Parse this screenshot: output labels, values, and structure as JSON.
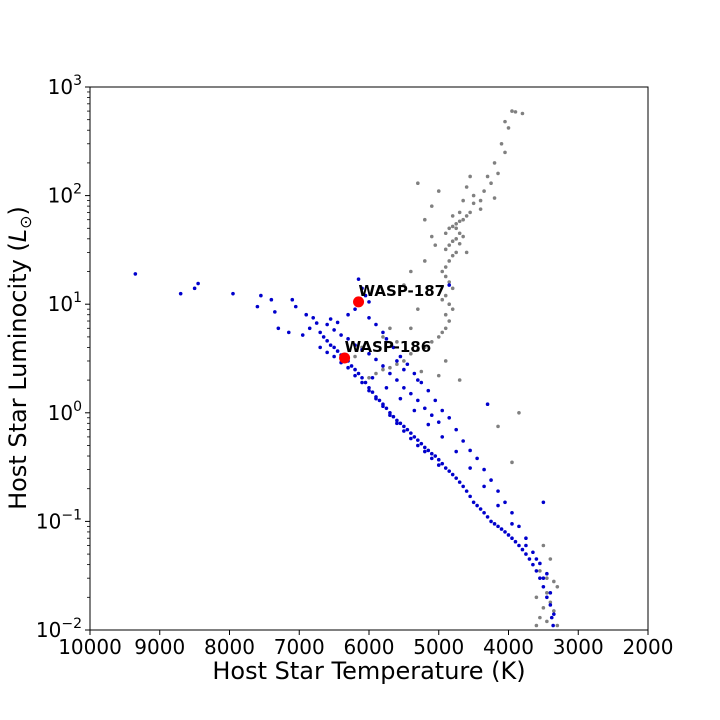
{
  "chart_data": {
    "type": "scatter",
    "title": "",
    "xlabel": "Host Star Temperature (K)",
    "ylabel_text": "Host Star Luminocity (",
    "ylabel_symbol": "L",
    "ylabel_sub": "⊙",
    "ylabel_close": ")",
    "xlim": [
      10000,
      2000
    ],
    "x_inverted": true,
    "ylim": [
      0.01,
      1000
    ],
    "y_scale": "log",
    "grid": false,
    "x_ticks": [
      10000,
      9000,
      8000,
      7000,
      6000,
      5000,
      4000,
      3000,
      2000
    ],
    "x_tick_labels": [
      "10000",
      "9000",
      "8000",
      "7000",
      "6000",
      "5000",
      "4000",
      "3000",
      "2000"
    ],
    "y_ticks": [
      0.01,
      0.1,
      1,
      10,
      100,
      1000
    ],
    "y_tick_labels": [
      {
        "base": "10",
        "exp": "−2"
      },
      {
        "base": "10",
        "exp": "−1"
      },
      {
        "base": "10",
        "exp": "0"
      },
      {
        "base": "10",
        "exp": "1"
      },
      {
        "base": "10",
        "exp": "2"
      },
      {
        "base": "10",
        "exp": "3"
      }
    ],
    "series": [
      {
        "color": "#808080",
        "points": [
          [
            3950,
            600
          ],
          [
            3900,
            590
          ],
          [
            3800,
            570
          ],
          [
            4050,
            480
          ],
          [
            4000,
            420
          ],
          [
            4100,
            300
          ],
          [
            4050,
            250
          ],
          [
            4200,
            200
          ],
          [
            4150,
            160
          ],
          [
            4300,
            150
          ],
          [
            4250,
            130
          ],
          [
            4350,
            110
          ],
          [
            4200,
            95
          ],
          [
            4400,
            90
          ],
          [
            4500,
            85
          ],
          [
            4550,
            70
          ],
          [
            4600,
            65
          ],
          [
            4650,
            60
          ],
          [
            4700,
            58
          ],
          [
            4750,
            55
          ],
          [
            4800,
            52
          ],
          [
            4850,
            50
          ],
          [
            4700,
            45
          ],
          [
            4750,
            40
          ],
          [
            4800,
            38
          ],
          [
            4850,
            35
          ],
          [
            4900,
            32
          ],
          [
            4750,
            30
          ],
          [
            4800,
            28
          ],
          [
            4850,
            25
          ],
          [
            4900,
            22
          ],
          [
            4950,
            20
          ],
          [
            4900,
            18
          ],
          [
            4850,
            16
          ],
          [
            4800,
            14
          ],
          [
            4900,
            12
          ],
          [
            4950,
            11
          ],
          [
            4850,
            10
          ],
          [
            4800,
            9
          ],
          [
            4900,
            8
          ],
          [
            4850,
            7
          ],
          [
            4900,
            6
          ],
          [
            4950,
            5.5
          ],
          [
            5000,
            5
          ],
          [
            5100,
            4.5
          ],
          [
            5200,
            4
          ],
          [
            5300,
            3.8
          ],
          [
            5400,
            3.5
          ],
          [
            5500,
            3
          ],
          [
            5600,
            2.8
          ],
          [
            5700,
            2.6
          ],
          [
            5800,
            2.5
          ],
          [
            5900,
            2.3
          ],
          [
            6000,
            2.1
          ],
          [
            4600,
            120
          ],
          [
            4500,
            100
          ],
          [
            4400,
            75
          ],
          [
            4650,
            90
          ],
          [
            4700,
            70
          ],
          [
            4800,
            65
          ],
          [
            4750,
            50
          ],
          [
            4900,
            45
          ],
          [
            4650,
            42
          ],
          [
            4700,
            36
          ],
          [
            4600,
            30
          ],
          [
            4550,
            150
          ],
          [
            5300,
            130
          ],
          [
            5000,
            110
          ],
          [
            5100,
            80
          ],
          [
            5200,
            60
          ],
          [
            5100,
            42
          ],
          [
            5050,
            35
          ],
          [
            5400,
            20
          ],
          [
            5500,
            15
          ],
          [
            5200,
            25
          ],
          [
            5300,
            9
          ],
          [
            5700,
            6
          ],
          [
            5800,
            5
          ],
          [
            6100,
            4
          ],
          [
            6200,
            3.3
          ],
          [
            5400,
            6
          ],
          [
            5600,
            4.5
          ],
          [
            5250,
            2.4
          ],
          [
            5000,
            2.2
          ],
          [
            4900,
            3
          ],
          [
            4700,
            2
          ],
          [
            3850,
            1
          ],
          [
            4150,
            0.75
          ],
          [
            3950,
            0.35
          ],
          [
            3500,
            0.06
          ],
          [
            3400,
            0.045
          ],
          [
            3450,
            0.03
          ],
          [
            3550,
            0.035
          ],
          [
            3350,
            0.028
          ],
          [
            3300,
            0.025
          ],
          [
            3450,
            0.022
          ],
          [
            3600,
            0.02
          ],
          [
            3400,
            0.018
          ],
          [
            3500,
            0.016
          ],
          [
            3350,
            0.015
          ],
          [
            3550,
            0.013
          ],
          [
            3450,
            0.012
          ],
          [
            3300,
            0.011
          ],
          [
            3600,
            0.011
          ]
        ]
      },
      {
        "color": "#0000cc",
        "points": [
          [
            9350,
            19
          ],
          [
            8700,
            12.5
          ],
          [
            8450,
            15.5
          ],
          [
            8500,
            14
          ],
          [
            7950,
            12.5
          ],
          [
            7600,
            9.5
          ],
          [
            7550,
            12
          ],
          [
            7400,
            11
          ],
          [
            7350,
            8.5
          ],
          [
            7100,
            11
          ],
          [
            7050,
            9.5
          ],
          [
            6900,
            8
          ],
          [
            6800,
            7.5
          ],
          [
            6850,
            6
          ],
          [
            6700,
            5.5
          ],
          [
            6650,
            5
          ],
          [
            6600,
            4.6
          ],
          [
            6550,
            4.2
          ],
          [
            6500,
            4
          ],
          [
            6450,
            3.7
          ],
          [
            6400,
            3.4
          ],
          [
            6350,
            3.2
          ],
          [
            6300,
            3
          ],
          [
            6250,
            2.7
          ],
          [
            6200,
            2.5
          ],
          [
            6150,
            2.3
          ],
          [
            6100,
            2.1
          ],
          [
            6050,
            1.9
          ],
          [
            6000,
            1.7
          ],
          [
            5950,
            1.55
          ],
          [
            5900,
            1.4
          ],
          [
            5850,
            1.3
          ],
          [
            5800,
            1.2
          ],
          [
            5750,
            1.1
          ],
          [
            5700,
            1
          ],
          [
            5650,
            0.92
          ],
          [
            5600,
            0.85
          ],
          [
            5550,
            0.8
          ],
          [
            5500,
            0.75
          ],
          [
            5450,
            0.7
          ],
          [
            5400,
            0.65
          ],
          [
            5350,
            0.6
          ],
          [
            5300,
            0.56
          ],
          [
            5250,
            0.52
          ],
          [
            5200,
            0.48
          ],
          [
            5150,
            0.45
          ],
          [
            5100,
            0.42
          ],
          [
            5050,
            0.4
          ],
          [
            5000,
            0.37
          ],
          [
            4950,
            0.34
          ],
          [
            4900,
            0.31
          ],
          [
            4850,
            0.29
          ],
          [
            4800,
            0.27
          ],
          [
            4750,
            0.25
          ],
          [
            4700,
            0.23
          ],
          [
            4650,
            0.21
          ],
          [
            4600,
            0.19
          ],
          [
            4550,
            0.17
          ],
          [
            4500,
            0.15
          ],
          [
            4450,
            0.14
          ],
          [
            4400,
            0.13
          ],
          [
            4350,
            0.12
          ],
          [
            4300,
            0.11
          ],
          [
            4250,
            0.1
          ],
          [
            4200,
            0.095
          ],
          [
            4150,
            0.09
          ],
          [
            4100,
            0.085
          ],
          [
            4050,
            0.08
          ],
          [
            4000,
            0.075
          ],
          [
            3950,
            0.07
          ],
          [
            3900,
            0.065
          ],
          [
            3850,
            0.06
          ],
          [
            3800,
            0.055
          ],
          [
            3750,
            0.05
          ],
          [
            3700,
            0.045
          ],
          [
            3650,
            0.04
          ],
          [
            3600,
            0.035
          ],
          [
            3550,
            0.03
          ],
          [
            3500,
            0.025
          ],
          [
            3450,
            0.02
          ],
          [
            3400,
            0.017
          ],
          [
            3380,
            0.013
          ],
          [
            3360,
            0.011
          ],
          [
            6600,
            6.5
          ],
          [
            6500,
            5.8
          ],
          [
            6400,
            5.2
          ],
          [
            6300,
            4.8
          ],
          [
            6200,
            4.2
          ],
          [
            6100,
            3.8
          ],
          [
            6000,
            3.5
          ],
          [
            5900,
            3.1
          ],
          [
            5800,
            2.7
          ],
          [
            5700,
            2.3
          ],
          [
            5600,
            2
          ],
          [
            5500,
            1.7
          ],
          [
            5400,
            1.5
          ],
          [
            5300,
            1.3
          ],
          [
            5200,
            1.1
          ],
          [
            5100,
            0.95
          ],
          [
            5000,
            0.82
          ],
          [
            6700,
            4
          ],
          [
            6600,
            3.6
          ],
          [
            6500,
            3.3
          ],
          [
            6400,
            2.9
          ],
          [
            6300,
            2.6
          ],
          [
            6200,
            2.2
          ],
          [
            6100,
            1.9
          ],
          [
            6000,
            1.6
          ],
          [
            5900,
            1.35
          ],
          [
            5800,
            1.15
          ],
          [
            5700,
            0.95
          ],
          [
            5600,
            0.8
          ],
          [
            5500,
            0.68
          ],
          [
            5400,
            0.58
          ],
          [
            5300,
            0.5
          ],
          [
            5200,
            0.44
          ],
          [
            5100,
            0.38
          ],
          [
            5000,
            0.33
          ],
          [
            6150,
            17
          ],
          [
            6100,
            14
          ],
          [
            6050,
            12
          ],
          [
            6000,
            10.5
          ],
          [
            6200,
            9
          ],
          [
            6300,
            8
          ],
          [
            6000,
            7.5
          ],
          [
            5900,
            6.5
          ],
          [
            5800,
            5.5
          ],
          [
            5750,
            4.8
          ],
          [
            5650,
            4
          ],
          [
            5550,
            3.3
          ],
          [
            5450,
            2.8
          ],
          [
            5350,
            2.3
          ],
          [
            5250,
            1.9
          ],
          [
            5150,
            1.6
          ],
          [
            5050,
            1.3
          ],
          [
            4950,
            1.05
          ],
          [
            4850,
            0.9
          ],
          [
            4750,
            0.7
          ],
          [
            4650,
            0.55
          ],
          [
            4550,
            0.45
          ],
          [
            4450,
            0.38
          ],
          [
            4350,
            0.3
          ],
          [
            4250,
            0.24
          ],
          [
            4150,
            0.19
          ],
          [
            4050,
            0.15
          ],
          [
            3950,
            0.12
          ],
          [
            3850,
            0.09
          ],
          [
            3750,
            0.07
          ],
          [
            3650,
            0.052
          ],
          [
            3550,
            0.041
          ],
          [
            3450,
            0.033
          ],
          [
            4300,
            1.2
          ],
          [
            3500,
            0.15
          ],
          [
            4850,
            15
          ],
          [
            5500,
            2.5
          ],
          [
            5600,
            3
          ],
          [
            5300,
            2
          ],
          [
            6450,
            6.8
          ],
          [
            6550,
            7.3
          ],
          [
            6750,
            6.7
          ],
          [
            6950,
            5.2
          ],
          [
            7150,
            5.5
          ],
          [
            7300,
            6
          ],
          [
            5950,
            2.1
          ],
          [
            5750,
            1.7
          ],
          [
            5550,
            1.35
          ],
          [
            5350,
            1.05
          ],
          [
            5150,
            0.78
          ],
          [
            4950,
            0.6
          ],
          [
            4750,
            0.44
          ],
          [
            4550,
            0.31
          ],
          [
            4350,
            0.21
          ],
          [
            4150,
            0.14
          ],
          [
            3950,
            0.095
          ],
          [
            3750,
            0.06
          ],
          [
            3600,
            0.045
          ],
          [
            3500,
            0.03
          ],
          [
            3400,
            0.022
          ],
          [
            3350,
            0.014
          ]
        ]
      },
      {
        "color": "#ff0000",
        "points": [
          [
            6150,
            10.5
          ],
          [
            6350,
            3.2
          ]
        ]
      }
    ],
    "annotations": [
      {
        "text": "WASP-187",
        "x": 6150,
        "y": 10.5
      },
      {
        "text": "WASP-186",
        "x": 6350,
        "y": 3.2
      }
    ]
  }
}
